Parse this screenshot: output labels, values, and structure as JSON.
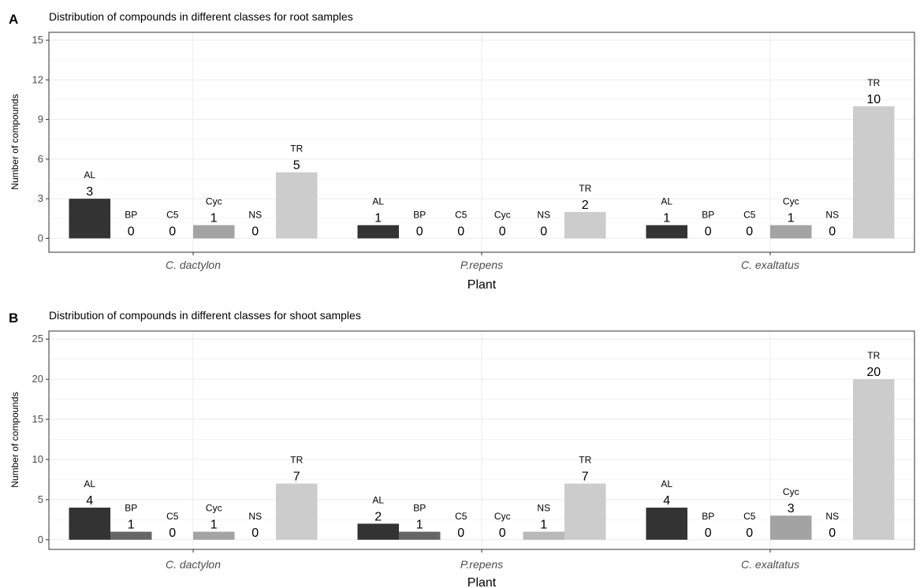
{
  "chart_data": [
    {
      "panel": "A",
      "type": "bar",
      "title": "Distribution of compounds in different classes for root samples",
      "xlabel": "Plant",
      "ylabel": "Number of compounds",
      "categories": [
        "C. dactylon",
        "P.repens",
        "C. exaltatus"
      ],
      "ylim": [
        -1.05,
        15.6
      ],
      "yticks": [
        0,
        3,
        6,
        9,
        12,
        15
      ],
      "grid": true,
      "series": [
        {
          "name": "AL",
          "color": "#333333",
          "values": [
            3,
            1,
            1
          ]
        },
        {
          "name": "BP",
          "color": "#666666",
          "values": [
            0,
            0,
            0
          ]
        },
        {
          "name": "C5",
          "color": "#858585",
          "values": [
            0,
            0,
            0
          ]
        },
        {
          "name": "Cyc",
          "color": "#a3a3a3",
          "values": [
            1,
            0,
            1
          ]
        },
        {
          "name": "NS",
          "color": "#b8b8b8",
          "values": [
            0,
            0,
            0
          ]
        },
        {
          "name": "TR",
          "color": "#cccccc",
          "values": [
            5,
            2,
            10
          ]
        }
      ]
    },
    {
      "panel": "B",
      "type": "bar",
      "title": "Distribution of compounds in different classes for shoot samples",
      "xlabel": "Plant",
      "ylabel": "Number of compounds",
      "categories": [
        "C. dactylon",
        "P.repens",
        "C. exaltatus"
      ],
      "ylim": [
        -1.2,
        26
      ],
      "yticks": [
        0,
        5,
        10,
        15,
        20,
        25
      ],
      "grid": true,
      "series": [
        {
          "name": "AL",
          "color": "#333333",
          "values": [
            4,
            2,
            4
          ]
        },
        {
          "name": "BP",
          "color": "#666666",
          "values": [
            1,
            1,
            0
          ]
        },
        {
          "name": "C5",
          "color": "#858585",
          "values": [
            0,
            0,
            0
          ]
        },
        {
          "name": "Cyc",
          "color": "#a3a3a3",
          "values": [
            1,
            0,
            3
          ]
        },
        {
          "name": "NS",
          "color": "#b8b8b8",
          "values": [
            0,
            1,
            0
          ]
        },
        {
          "name": "TR",
          "color": "#cccccc",
          "values": [
            7,
            7,
            20
          ]
        }
      ]
    }
  ]
}
